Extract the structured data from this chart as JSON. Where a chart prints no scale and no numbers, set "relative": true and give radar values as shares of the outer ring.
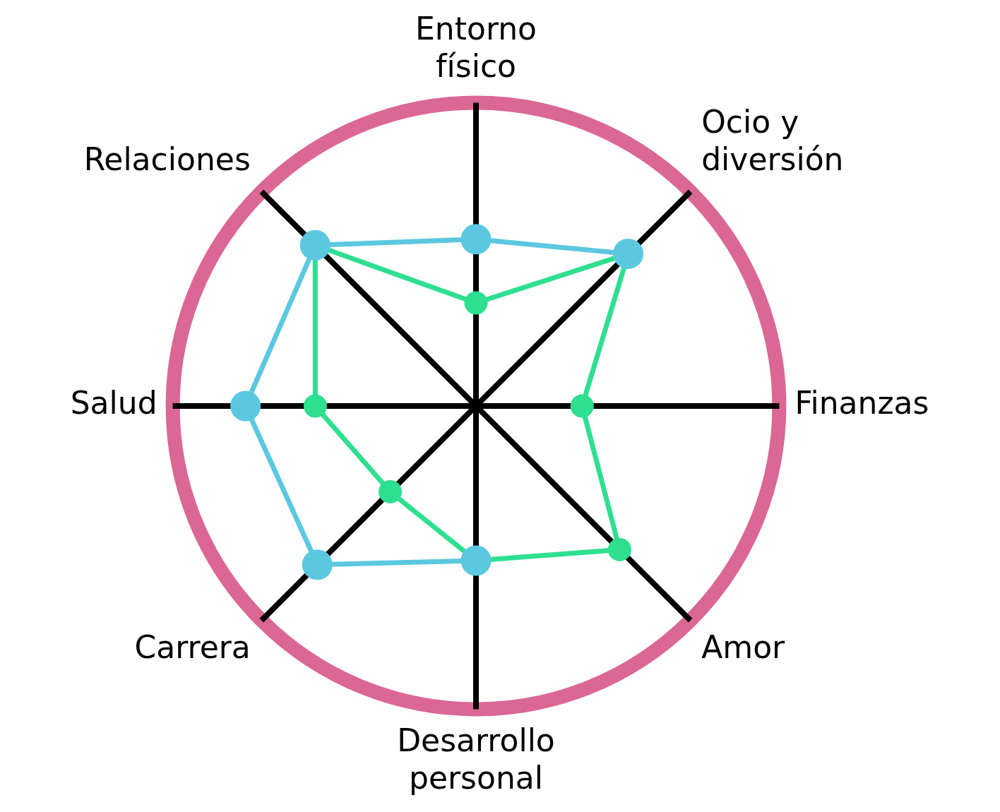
{
  "chart_data": {
    "type": "radar",
    "relative": true,
    "categories": [
      "Entorno físico",
      "Ocio y diversión",
      "Finanzas",
      "Amor",
      "Desarrollo personal",
      "Carrera",
      "Salud",
      "Relaciones"
    ],
    "legend": false,
    "marker": "circle",
    "series": [
      {
        "color": "#5bc8e0",
        "values": [
          0.55,
          0.71,
          null,
          null,
          0.51,
          0.74,
          0.76,
          0.75
        ]
      },
      {
        "color": "#2edf90",
        "values": [
          0.34,
          0.71,
          0.35,
          0.67,
          0.51,
          0.4,
          0.53,
          0.75
        ]
      }
    ]
  }
}
